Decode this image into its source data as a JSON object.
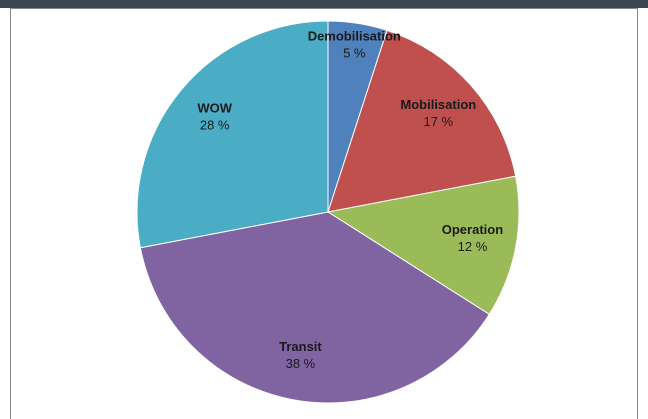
{
  "chart_data": {
    "type": "pie",
    "categories": [
      "Demobilisation",
      "Mobilisation",
      "Operation",
      "Transit",
      "WOW"
    ],
    "values": [
      5,
      17,
      12,
      38,
      28
    ],
    "value_labels": [
      "5 %",
      "17 %",
      "12 %",
      "38 %",
      "28 %"
    ],
    "colors": [
      "#4f81bd",
      "#c0504d",
      "#9bbb59",
      "#8064a2",
      "#4bacc6"
    ]
  }
}
